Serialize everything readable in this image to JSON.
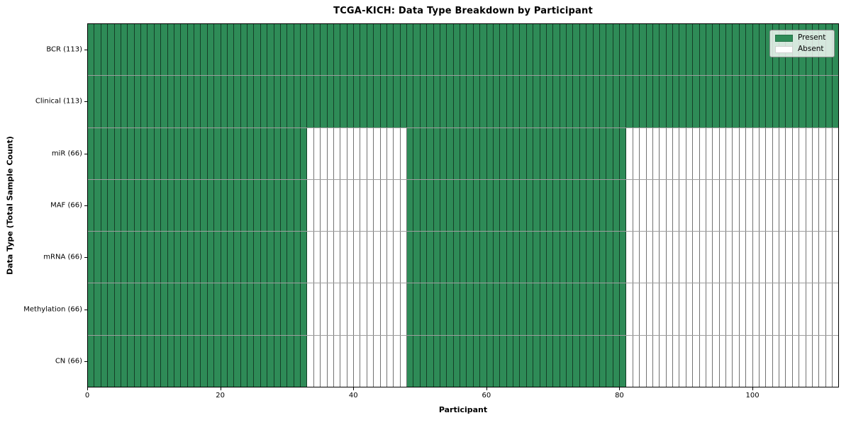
{
  "title": "TCGA-KICH: Data Type Breakdown by Participant",
  "chart_data": {
    "type": "heatmap",
    "title": "TCGA-KICH: Data Type Breakdown by Participant",
    "xlabel": "Participant",
    "ylabel": "Data Type (Total Sample Count)",
    "x_ticks": [
      0,
      20,
      40,
      60,
      80,
      100
    ],
    "x_range": [
      0,
      113
    ],
    "n_participants": 113,
    "grid": "cell-borders",
    "legend_position": "upper-right",
    "rows": [
      {
        "label": "BCR (113)",
        "name": "BCR",
        "total_samples": 113,
        "present_ranges": [
          [
            0,
            112
          ]
        ]
      },
      {
        "label": "Clinical (113)",
        "name": "Clinical",
        "total_samples": 113,
        "present_ranges": [
          [
            0,
            112
          ]
        ]
      },
      {
        "label": "miR (66)",
        "name": "miR",
        "total_samples": 66,
        "present_ranges": [
          [
            0,
            32
          ],
          [
            48,
            80
          ]
        ]
      },
      {
        "label": "MAF (66)",
        "name": "MAF",
        "total_samples": 66,
        "present_ranges": [
          [
            0,
            32
          ],
          [
            48,
            80
          ]
        ]
      },
      {
        "label": "mRNA (66)",
        "name": "mRNA",
        "total_samples": 66,
        "present_ranges": [
          [
            0,
            32
          ],
          [
            48,
            80
          ]
        ]
      },
      {
        "label": "Methylation (66)",
        "name": "Methylation",
        "total_samples": 66,
        "present_ranges": [
          [
            0,
            32
          ],
          [
            48,
            80
          ]
        ]
      },
      {
        "label": "CN (66)",
        "name": "CN",
        "total_samples": 66,
        "present_ranges": [
          [
            0,
            32
          ],
          [
            48,
            80
          ]
        ]
      }
    ],
    "legend": [
      {
        "label": "Present",
        "color": "#2e8b57"
      },
      {
        "label": "Absent",
        "color": "#ffffff"
      }
    ],
    "colors": {
      "present": "#2e8b57",
      "absent": "#ffffff",
      "cell_edge": "rgba(0,0,0,0.55)",
      "plot_border": "#000000"
    }
  }
}
